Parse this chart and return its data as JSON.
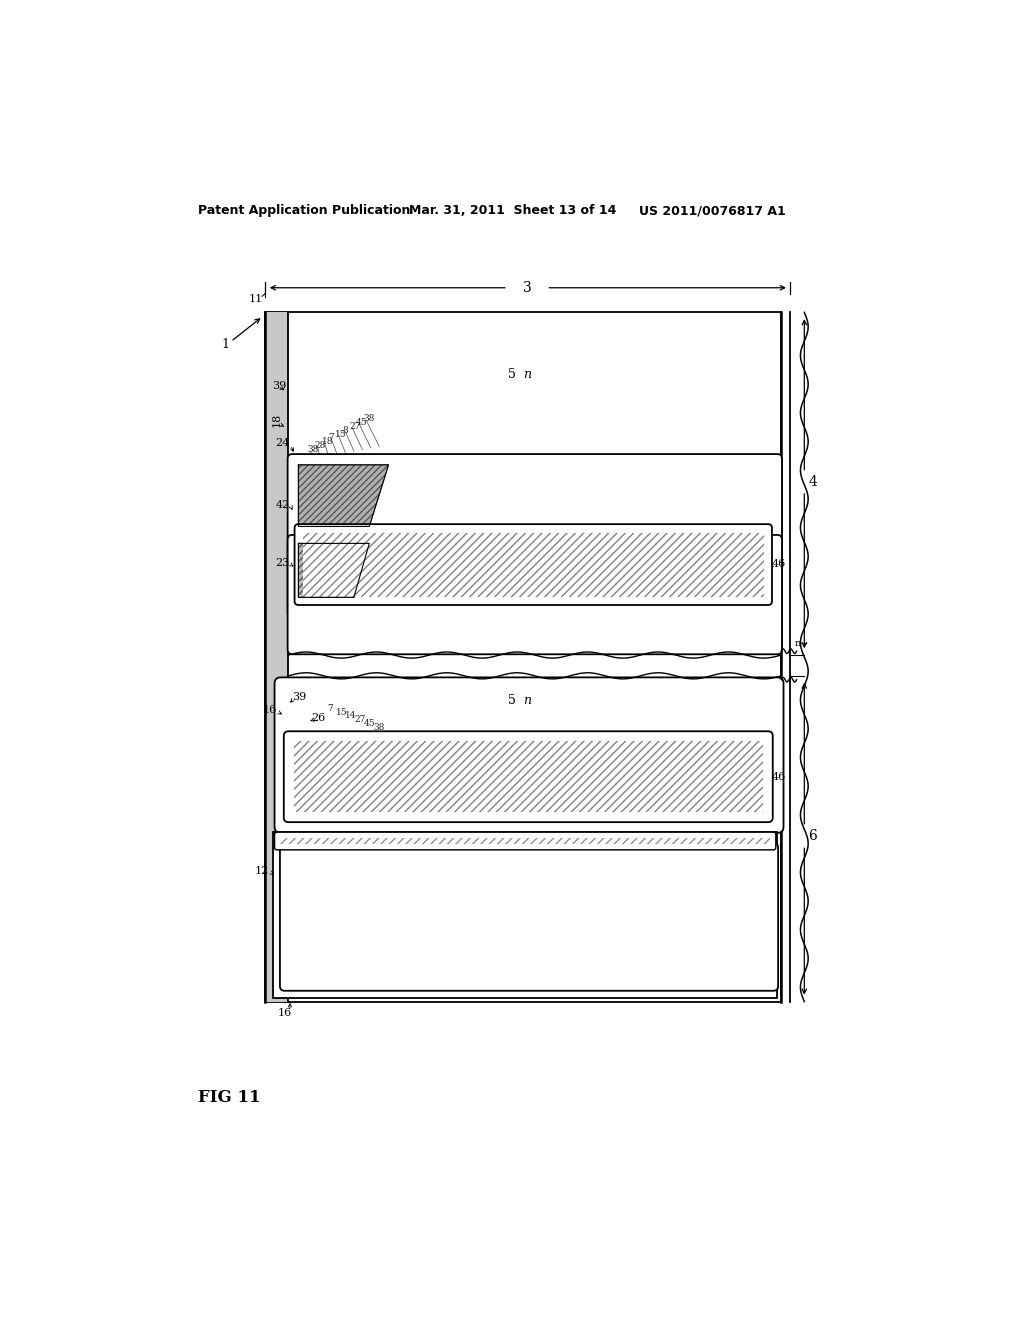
{
  "header_left": "Patent Application Publication",
  "header_mid": "Mar. 31, 2011  Sheet 13 of 14",
  "header_right": "US 2011/0076817 A1",
  "fig_label": "FIG 11",
  "bg_color": "#ffffff",
  "line_color": "#000000"
}
